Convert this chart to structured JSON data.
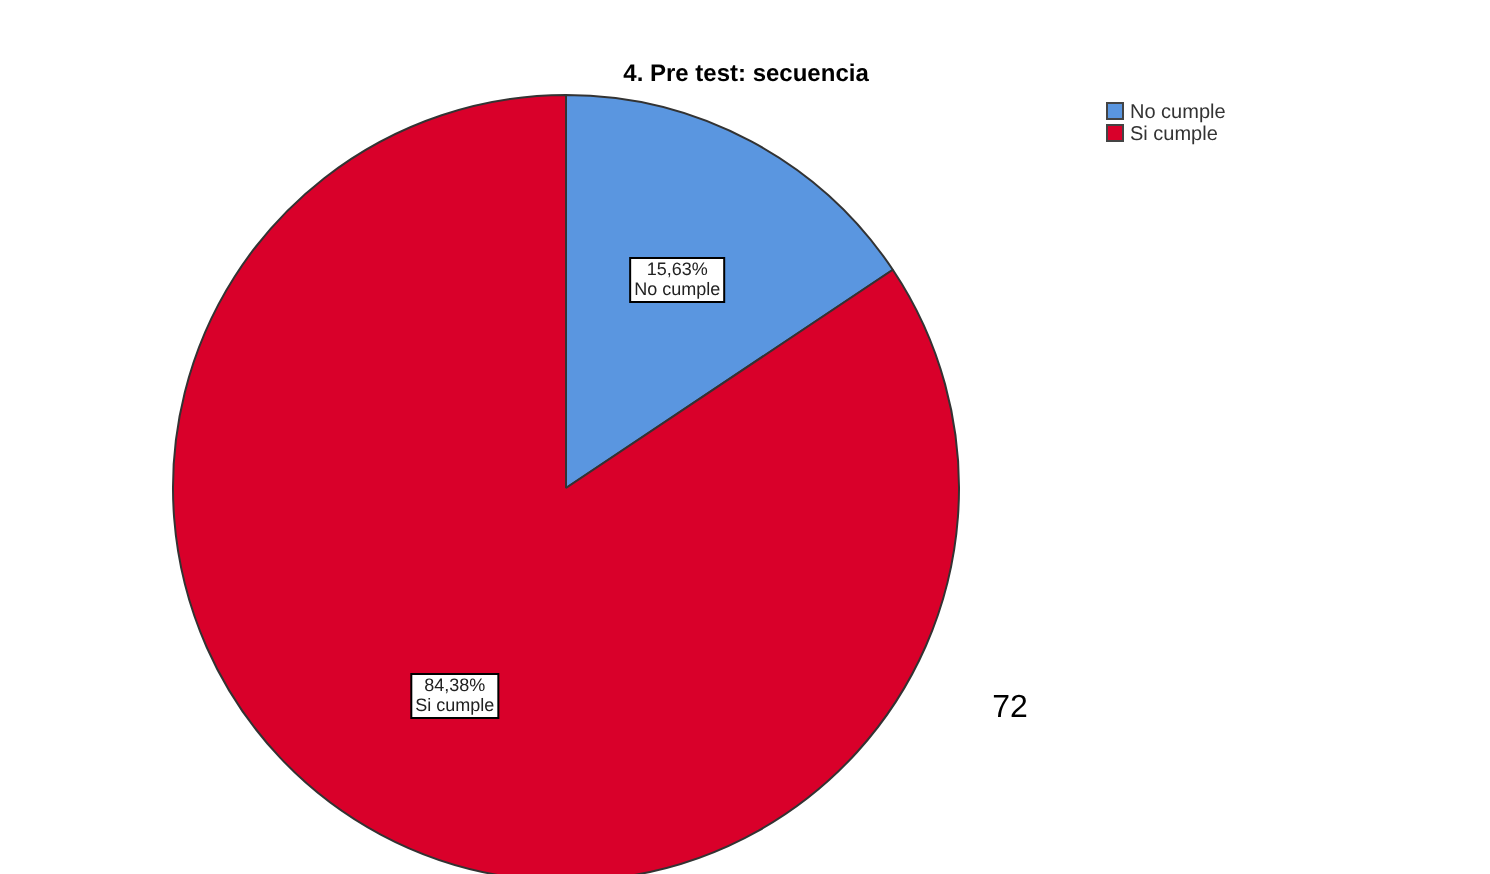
{
  "chart_data": {
    "type": "pie",
    "title": "4. Pre test: secuencia",
    "categories": [
      "No cumple",
      "Si cumple"
    ],
    "values": [
      15.63,
      84.38
    ],
    "colors": [
      "#5a96e0",
      "#d9002a"
    ],
    "value_labels": [
      "15,63%",
      "84,38%"
    ],
    "legend": "top right",
    "annotations": [
      "72"
    ]
  }
}
